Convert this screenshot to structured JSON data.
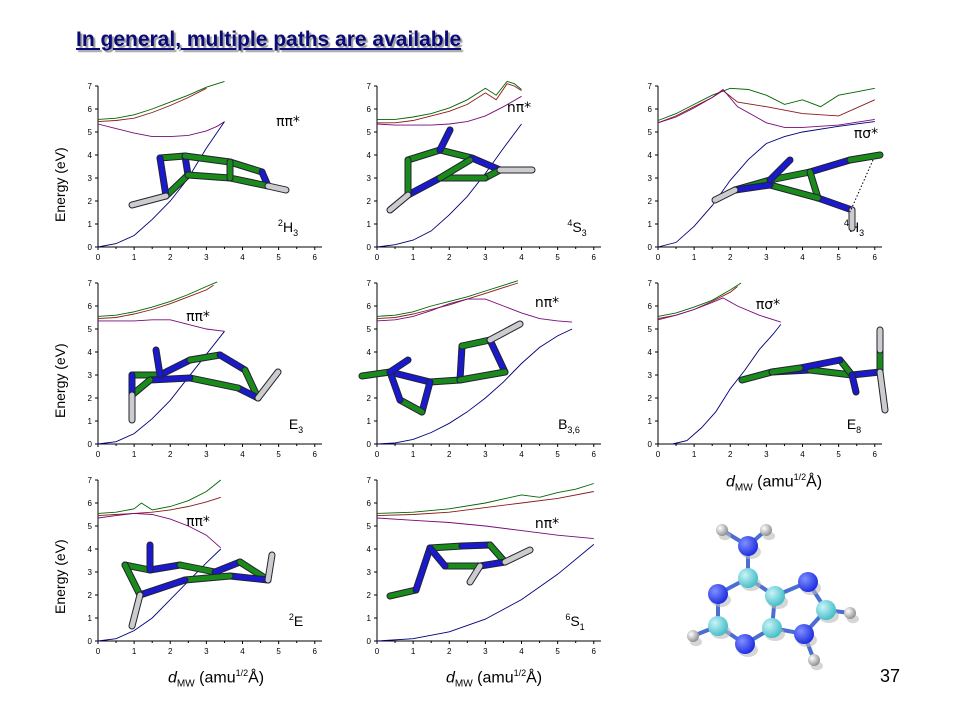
{
  "slide": {
    "title": "In general, multiple paths are available",
    "page_number": "37",
    "y_axis_label": "Energy (eV)",
    "x_axis_label_prefix": "d",
    "x_axis_label_sub": "MW",
    "x_axis_label_unit_a": "(amu",
    "x_axis_label_sup": "1/2",
    "x_axis_label_unit_b": "Å)"
  },
  "colors": {
    "dark_green": "#006400",
    "brown": "#8b1a1a",
    "purple": "#7a0a7a",
    "navy": "#00007a",
    "carbon": "#1a8a1a",
    "nitrogen": "#1a1acc",
    "hydrogen": "#cccccc",
    "ball_carbon": "#3fbcc6",
    "ball_nitrogen": "#1a2ae0",
    "ball_hydrogen": "#8c8c8c"
  },
  "chart_data": [
    {
      "type": "line",
      "xlim": [
        0,
        6.2
      ],
      "ylim": [
        0,
        7
      ],
      "xticks": [
        0,
        1,
        2,
        3,
        4,
        5,
        6
      ],
      "yticks": [
        0,
        1,
        2,
        3,
        4,
        5,
        6,
        7
      ],
      "state_label": "ππ*",
      "conformer": {
        "pre": "2",
        "main": "H",
        "sub": "3"
      },
      "series": [
        {
          "color": "dark_green",
          "x": [
            0,
            0.5,
            1,
            1.5,
            2,
            2.5,
            3,
            3.5
          ],
          "y": [
            5.55,
            5.6,
            5.75,
            6.0,
            6.3,
            6.6,
            6.95,
            7.2
          ]
        },
        {
          "color": "brown",
          "x": [
            0,
            0.5,
            1,
            1.5,
            2,
            2.5,
            3
          ],
          "y": [
            5.45,
            5.5,
            5.6,
            5.85,
            6.15,
            6.5,
            6.9
          ]
        },
        {
          "color": "purple",
          "x": [
            0,
            0.5,
            1,
            1.5,
            2,
            2.5,
            3,
            3.3,
            3.5
          ],
          "y": [
            5.35,
            5.15,
            4.95,
            4.8,
            4.8,
            4.85,
            5.05,
            5.25,
            5.45
          ]
        },
        {
          "color": "navy",
          "x": [
            0,
            0.5,
            1,
            1.5,
            2,
            2.5,
            3,
            3.5
          ],
          "y": [
            0,
            0.15,
            0.5,
            1.2,
            2.0,
            3.0,
            4.3,
            5.45
          ]
        }
      ]
    },
    {
      "type": "line",
      "xlim": [
        0,
        6.2
      ],
      "ylim": [
        0,
        7
      ],
      "xticks": [
        0,
        1,
        2,
        3,
        4,
        5,
        6
      ],
      "yticks": [
        0,
        1,
        2,
        3,
        4,
        5,
        6,
        7
      ],
      "state_label": "nπ*",
      "conformer": {
        "pre": "4",
        "main": "S",
        "sub": "3"
      },
      "series": [
        {
          "color": "dark_green",
          "x": [
            0,
            0.5,
            1,
            1.5,
            2,
            2.5,
            3,
            3.3,
            3.6,
            3.8,
            4
          ],
          "y": [
            5.55,
            5.55,
            5.65,
            5.8,
            6.05,
            6.4,
            6.9,
            6.6,
            7.2,
            7.1,
            6.85
          ]
        },
        {
          "color": "brown",
          "x": [
            0,
            0.5,
            1,
            1.5,
            2,
            2.5,
            3,
            3.3,
            3.6,
            3.8,
            4
          ],
          "y": [
            5.4,
            5.4,
            5.5,
            5.7,
            5.9,
            6.2,
            6.7,
            6.4,
            7.1,
            7.0,
            6.8
          ]
        },
        {
          "color": "purple",
          "x": [
            0,
            0.5,
            1,
            1.5,
            2,
            2.5,
            3,
            3.5,
            4
          ],
          "y": [
            5.35,
            5.3,
            5.3,
            5.3,
            5.35,
            5.45,
            5.7,
            6.1,
            6.55
          ]
        },
        {
          "color": "navy",
          "x": [
            0,
            0.5,
            1,
            1.5,
            2,
            2.5,
            3,
            3.5,
            4
          ],
          "y": [
            0,
            0.1,
            0.3,
            0.7,
            1.4,
            2.2,
            3.2,
            4.3,
            5.35
          ]
        }
      ]
    },
    {
      "type": "line",
      "xlim": [
        0,
        6.2
      ],
      "ylim": [
        0,
        7
      ],
      "xticks": [
        0,
        1,
        2,
        3,
        4,
        5,
        6
      ],
      "yticks": [
        0,
        1,
        2,
        3,
        4,
        5,
        6,
        7
      ],
      "state_label": "πσ*",
      "conformer": {
        "pre": "4",
        "main": "H",
        "sub": "3"
      },
      "series": [
        {
          "color": "dark_green",
          "x": [
            0,
            0.5,
            1,
            1.5,
            2,
            2.5,
            3,
            3.5,
            4,
            4.5,
            5,
            5.5,
            6
          ],
          "y": [
            5.5,
            5.8,
            6.2,
            6.6,
            6.9,
            6.85,
            6.6,
            6.2,
            6.4,
            6.1,
            6.6,
            6.75,
            6.9
          ]
        },
        {
          "color": "brown",
          "x": [
            0,
            0.5,
            1,
            1.5,
            1.8,
            2.2,
            3,
            4,
            5,
            6
          ],
          "y": [
            5.4,
            5.7,
            6.1,
            6.5,
            6.8,
            6.3,
            6.1,
            5.8,
            5.7,
            6.4
          ]
        },
        {
          "color": "purple",
          "x": [
            0,
            0.5,
            1,
            1.5,
            1.8,
            2.2,
            3,
            3.5,
            4,
            5,
            6
          ],
          "y": [
            5.4,
            5.65,
            6.05,
            6.5,
            6.85,
            6.1,
            5.4,
            5.2,
            5.2,
            5.3,
            5.55
          ]
        },
        {
          "color": "navy",
          "x": [
            0,
            0.5,
            1,
            1.5,
            2,
            2.5,
            3,
            3.5,
            4,
            5,
            6
          ],
          "y": [
            0,
            0.2,
            0.9,
            1.8,
            2.9,
            3.8,
            4.5,
            4.8,
            5.0,
            5.25,
            5.45
          ]
        }
      ]
    },
    {
      "type": "line",
      "xlim": [
        0,
        6.2
      ],
      "ylim": [
        0,
        7
      ],
      "xticks": [
        0,
        1,
        2,
        3,
        4,
        5,
        6
      ],
      "yticks": [
        0,
        1,
        2,
        3,
        4,
        5,
        6,
        7
      ],
      "state_label": "ππ*",
      "conformer": {
        "pre": "",
        "main": "E",
        "sub": "3"
      },
      "series": [
        {
          "color": "dark_green",
          "x": [
            0,
            0.5,
            1,
            1.5,
            2,
            2.5,
            3,
            3.3
          ],
          "y": [
            5.55,
            5.6,
            5.75,
            5.95,
            6.2,
            6.5,
            6.85,
            7.05
          ]
        },
        {
          "color": "brown",
          "x": [
            0,
            0.5,
            1,
            1.5,
            2,
            2.5,
            3,
            3.2
          ],
          "y": [
            5.45,
            5.5,
            5.65,
            5.85,
            6.1,
            6.4,
            6.7,
            6.9
          ]
        },
        {
          "color": "purple",
          "x": [
            0,
            0.5,
            1,
            1.5,
            2,
            2.5,
            3,
            3.5
          ],
          "y": [
            5.35,
            5.35,
            5.35,
            5.4,
            5.4,
            5.2,
            5.0,
            4.9
          ]
        },
        {
          "color": "navy",
          "x": [
            0,
            0.5,
            1,
            1.5,
            2,
            2.5,
            3,
            3.5
          ],
          "y": [
            0,
            0.1,
            0.45,
            1.1,
            1.9,
            2.9,
            3.9,
            4.9
          ]
        }
      ]
    },
    {
      "type": "line",
      "xlim": [
        0,
        6.2
      ],
      "ylim": [
        0,
        7
      ],
      "xticks": [
        0,
        1,
        2,
        3,
        4,
        5,
        6
      ],
      "yticks": [
        0,
        1,
        2,
        3,
        4,
        5,
        6,
        7
      ],
      "state_label": "nπ*",
      "conformer": {
        "pre": "",
        "main": "B",
        "sub": "3,6"
      },
      "series": [
        {
          "color": "dark_green",
          "x": [
            0,
            0.5,
            1,
            1.5,
            2,
            2.5,
            3,
            3.5,
            3.9
          ],
          "y": [
            5.55,
            5.6,
            5.75,
            6.0,
            6.2,
            6.4,
            6.65,
            6.9,
            7.1
          ]
        },
        {
          "color": "brown",
          "x": [
            0,
            0.5,
            1,
            1.5,
            2,
            2.5,
            3,
            3.5,
            3.9
          ],
          "y": [
            5.45,
            5.5,
            5.65,
            5.85,
            6.05,
            6.3,
            6.55,
            6.8,
            7.0
          ]
        },
        {
          "color": "purple",
          "x": [
            0,
            0.5,
            1,
            1.5,
            2,
            2.5,
            3,
            3.5,
            4,
            4.5,
            5,
            5.4
          ],
          "y": [
            5.35,
            5.4,
            5.55,
            5.8,
            6.1,
            6.3,
            6.3,
            6.0,
            5.7,
            5.45,
            5.35,
            5.3
          ]
        },
        {
          "color": "navy",
          "x": [
            0,
            0.5,
            1,
            1.5,
            2,
            2.5,
            3,
            3.5,
            4,
            4.5,
            5,
            5.4
          ],
          "y": [
            0,
            0.05,
            0.2,
            0.5,
            0.9,
            1.4,
            2.0,
            2.7,
            3.5,
            4.2,
            4.7,
            5.0
          ]
        }
      ]
    },
    {
      "type": "line",
      "xlim": [
        0,
        6.2
      ],
      "ylim": [
        0,
        7
      ],
      "xticks": [
        0,
        1,
        2,
        3,
        4,
        5,
        6
      ],
      "yticks": [
        0,
        1,
        2,
        3,
        4,
        5,
        6,
        7
      ],
      "state_label": "πσ*",
      "conformer": {
        "pre": "",
        "main": "E",
        "sub": "8"
      },
      "series": [
        {
          "color": "dark_green",
          "x": [
            0,
            0.5,
            1,
            1.5,
            2,
            2.3
          ],
          "y": [
            5.55,
            5.7,
            5.95,
            6.25,
            6.7,
            7.0
          ]
        },
        {
          "color": "brown",
          "x": [
            0,
            0.5,
            1,
            1.5,
            2,
            2.2
          ],
          "y": [
            5.45,
            5.6,
            5.85,
            6.2,
            6.6,
            6.85
          ]
        },
        {
          "color": "purple",
          "x": [
            0,
            0.5,
            1,
            1.5,
            1.8,
            2.2,
            2.8,
            3.4
          ],
          "y": [
            5.4,
            5.6,
            5.85,
            6.15,
            6.35,
            6.0,
            5.6,
            5.3
          ]
        },
        {
          "color": "navy",
          "x": [
            0.4,
            0.8,
            1.2,
            1.6,
            2.0,
            2.4,
            2.8,
            3.2,
            3.4
          ],
          "y": [
            0,
            0.15,
            0.7,
            1.4,
            2.4,
            3.2,
            4.1,
            4.8,
            5.2
          ]
        }
      ]
    },
    {
      "type": "line",
      "xlim": [
        0,
        6.2
      ],
      "ylim": [
        0,
        7
      ],
      "xticks": [
        0,
        1,
        2,
        3,
        4,
        5,
        6
      ],
      "yticks": [
        0,
        1,
        2,
        3,
        4,
        5,
        6,
        7
      ],
      "state_label": "ππ*",
      "conformer": {
        "pre": "2",
        "main": "E",
        "sub": ""
      },
      "series": [
        {
          "color": "dark_green",
          "x": [
            0,
            0.5,
            1,
            1.2,
            1.5,
            2,
            2.5,
            3,
            3.4
          ],
          "y": [
            5.55,
            5.6,
            5.75,
            6.0,
            5.7,
            5.85,
            6.1,
            6.5,
            7.0
          ]
        },
        {
          "color": "brown",
          "x": [
            0,
            0.5,
            1,
            1.5,
            2,
            2.5,
            3,
            3.4
          ],
          "y": [
            5.45,
            5.5,
            5.55,
            5.6,
            5.7,
            5.85,
            6.05,
            6.25
          ]
        },
        {
          "color": "purple",
          "x": [
            0,
            0.5,
            1,
            1.5,
            2,
            2.5,
            3,
            3.4
          ],
          "y": [
            5.35,
            5.45,
            5.55,
            5.5,
            5.3,
            5.0,
            4.6,
            4.05
          ]
        },
        {
          "color": "navy",
          "x": [
            0,
            0.5,
            1,
            1.5,
            2,
            2.5,
            3,
            3.4
          ],
          "y": [
            0,
            0.1,
            0.45,
            1.0,
            1.8,
            2.6,
            3.4,
            4.0
          ]
        }
      ]
    },
    {
      "type": "line",
      "xlim": [
        0,
        6.2
      ],
      "ylim": [
        0,
        7
      ],
      "xticks": [
        0,
        1,
        2,
        3,
        4,
        5,
        6
      ],
      "yticks": [
        0,
        1,
        2,
        3,
        4,
        5,
        6,
        7
      ],
      "state_label": "nπ*",
      "conformer": {
        "pre": "6",
        "main": "S",
        "sub": "1"
      },
      "series": [
        {
          "color": "dark_green",
          "x": [
            0,
            1,
            2,
            3,
            4,
            4.5,
            5,
            5.5,
            6
          ],
          "y": [
            5.55,
            5.6,
            5.75,
            6.0,
            6.35,
            6.25,
            6.45,
            6.6,
            6.85
          ]
        },
        {
          "color": "brown",
          "x": [
            0,
            1,
            2,
            3,
            4,
            5,
            6
          ],
          "y": [
            5.45,
            5.5,
            5.6,
            5.8,
            6.0,
            6.2,
            6.5
          ]
        },
        {
          "color": "purple",
          "x": [
            0,
            1,
            2,
            3,
            4,
            5,
            6
          ],
          "y": [
            5.35,
            5.25,
            5.15,
            5.0,
            4.8,
            4.6,
            4.45
          ]
        },
        {
          "color": "navy",
          "x": [
            0,
            1,
            2,
            3,
            4,
            5,
            6
          ],
          "y": [
            0,
            0.1,
            0.4,
            0.95,
            1.8,
            2.9,
            4.2
          ]
        }
      ]
    }
  ]
}
